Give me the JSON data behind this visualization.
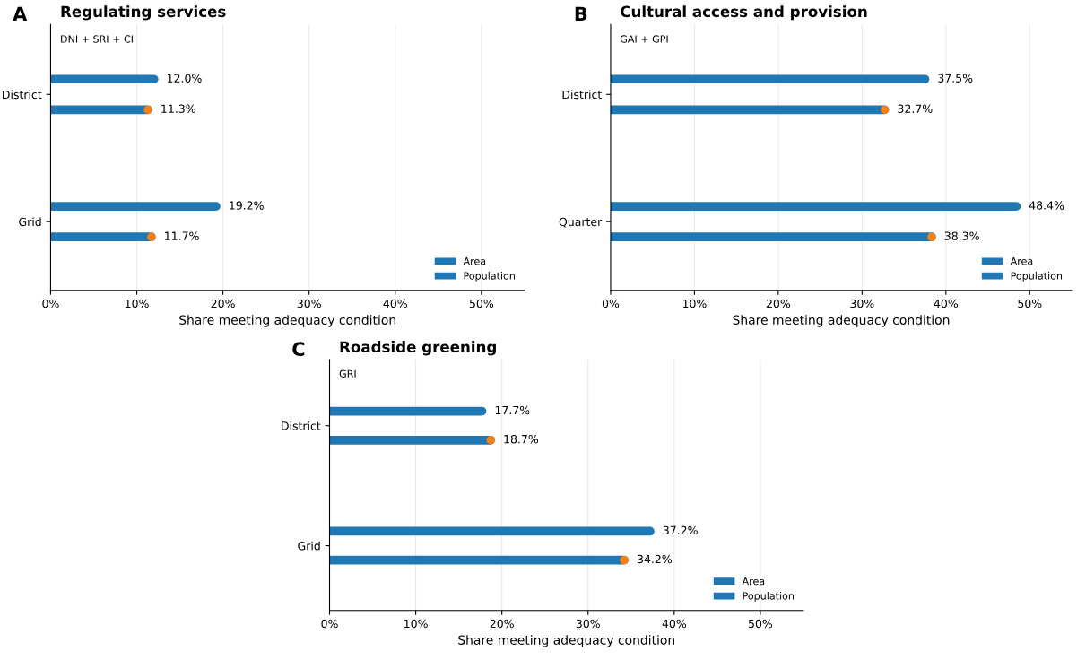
{
  "chart_data": [
    {
      "type": "bar",
      "orientation": "horizontal",
      "title": "Regulating services",
      "subtitle": "DNI + SRI + CI",
      "annotations": [
        "A"
      ],
      "xlabel": "Share meeting adequacy condition",
      "categories": [
        "District",
        "Grid"
      ],
      "xlim": [
        0,
        55
      ],
      "xticks": [
        {
          "value": 0,
          "label": "0%"
        },
        {
          "value": 10,
          "label": "10%"
        },
        {
          "value": 20,
          "label": "20%"
        },
        {
          "value": 30,
          "label": "30%"
        },
        {
          "value": 40,
          "label": "40%"
        },
        {
          "value": 50,
          "label": "50%"
        }
      ],
      "grid": "x",
      "legend": "bottom right",
      "series": [
        {
          "name": "Area",
          "color": "#1f77b4",
          "values": [
            12.0,
            19.2
          ],
          "value_labels": [
            "12.0%",
            "19.2%"
          ]
        },
        {
          "name": "Population",
          "color": "#1f77b4",
          "values": [
            11.3,
            11.7
          ],
          "value_labels": [
            "11.3%",
            "11.7%"
          ]
        },
        {
          "type": "scatter",
          "marker": "circle",
          "color": "#ff7f0e",
          "values": [
            11.3,
            11.7
          ]
        }
      ]
    },
    {
      "type": "bar",
      "orientation": "horizontal",
      "title": "Cultural access and provision",
      "subtitle": "GAI + GPI",
      "annotations": [
        "B"
      ],
      "xlabel": "Share meeting adequacy condition",
      "categories": [
        "District",
        "Quarter"
      ],
      "xlim": [
        0,
        55
      ],
      "xticks": [
        {
          "value": 0,
          "label": "0%"
        },
        {
          "value": 10,
          "label": "10%"
        },
        {
          "value": 20,
          "label": "20%"
        },
        {
          "value": 30,
          "label": "30%"
        },
        {
          "value": 40,
          "label": "40%"
        },
        {
          "value": 50,
          "label": "50%"
        }
      ],
      "grid": "x",
      "legend": "bottom right",
      "series": [
        {
          "name": "Area",
          "color": "#1f77b4",
          "values": [
            37.5,
            48.4
          ],
          "value_labels": [
            "37.5%",
            "48.4%"
          ]
        },
        {
          "name": "Population",
          "color": "#1f77b4",
          "values": [
            32.7,
            38.3
          ],
          "value_labels": [
            "32.7%",
            "38.3%"
          ]
        },
        {
          "type": "scatter",
          "marker": "circle",
          "color": "#ff7f0e",
          "values": [
            32.7,
            38.3
          ]
        }
      ]
    },
    {
      "type": "bar",
      "orientation": "horizontal",
      "title": "Roadside greening",
      "subtitle": "GRI",
      "annotations": [
        "C"
      ],
      "xlabel": "Share meeting adequacy condition",
      "categories": [
        "District",
        "Grid"
      ],
      "xlim": [
        0,
        55
      ],
      "xticks": [
        {
          "value": 0,
          "label": "0%"
        },
        {
          "value": 10,
          "label": "10%"
        },
        {
          "value": 20,
          "label": "20%"
        },
        {
          "value": 30,
          "label": "30%"
        },
        {
          "value": 40,
          "label": "40%"
        },
        {
          "value": 50,
          "label": "50%"
        }
      ],
      "grid": "x",
      "legend": "bottom right",
      "series": [
        {
          "name": "Area",
          "color": "#1f77b4",
          "values": [
            17.7,
            37.2
          ],
          "value_labels": [
            "17.7%",
            "37.2%"
          ]
        },
        {
          "name": "Population",
          "color": "#1f77b4",
          "values": [
            18.7,
            34.2
          ],
          "value_labels": [
            "18.7%",
            "34.2%"
          ]
        },
        {
          "type": "scatter",
          "marker": "circle",
          "color": "#ff7f0e",
          "values": [
            18.7,
            34.2
          ]
        }
      ]
    }
  ]
}
